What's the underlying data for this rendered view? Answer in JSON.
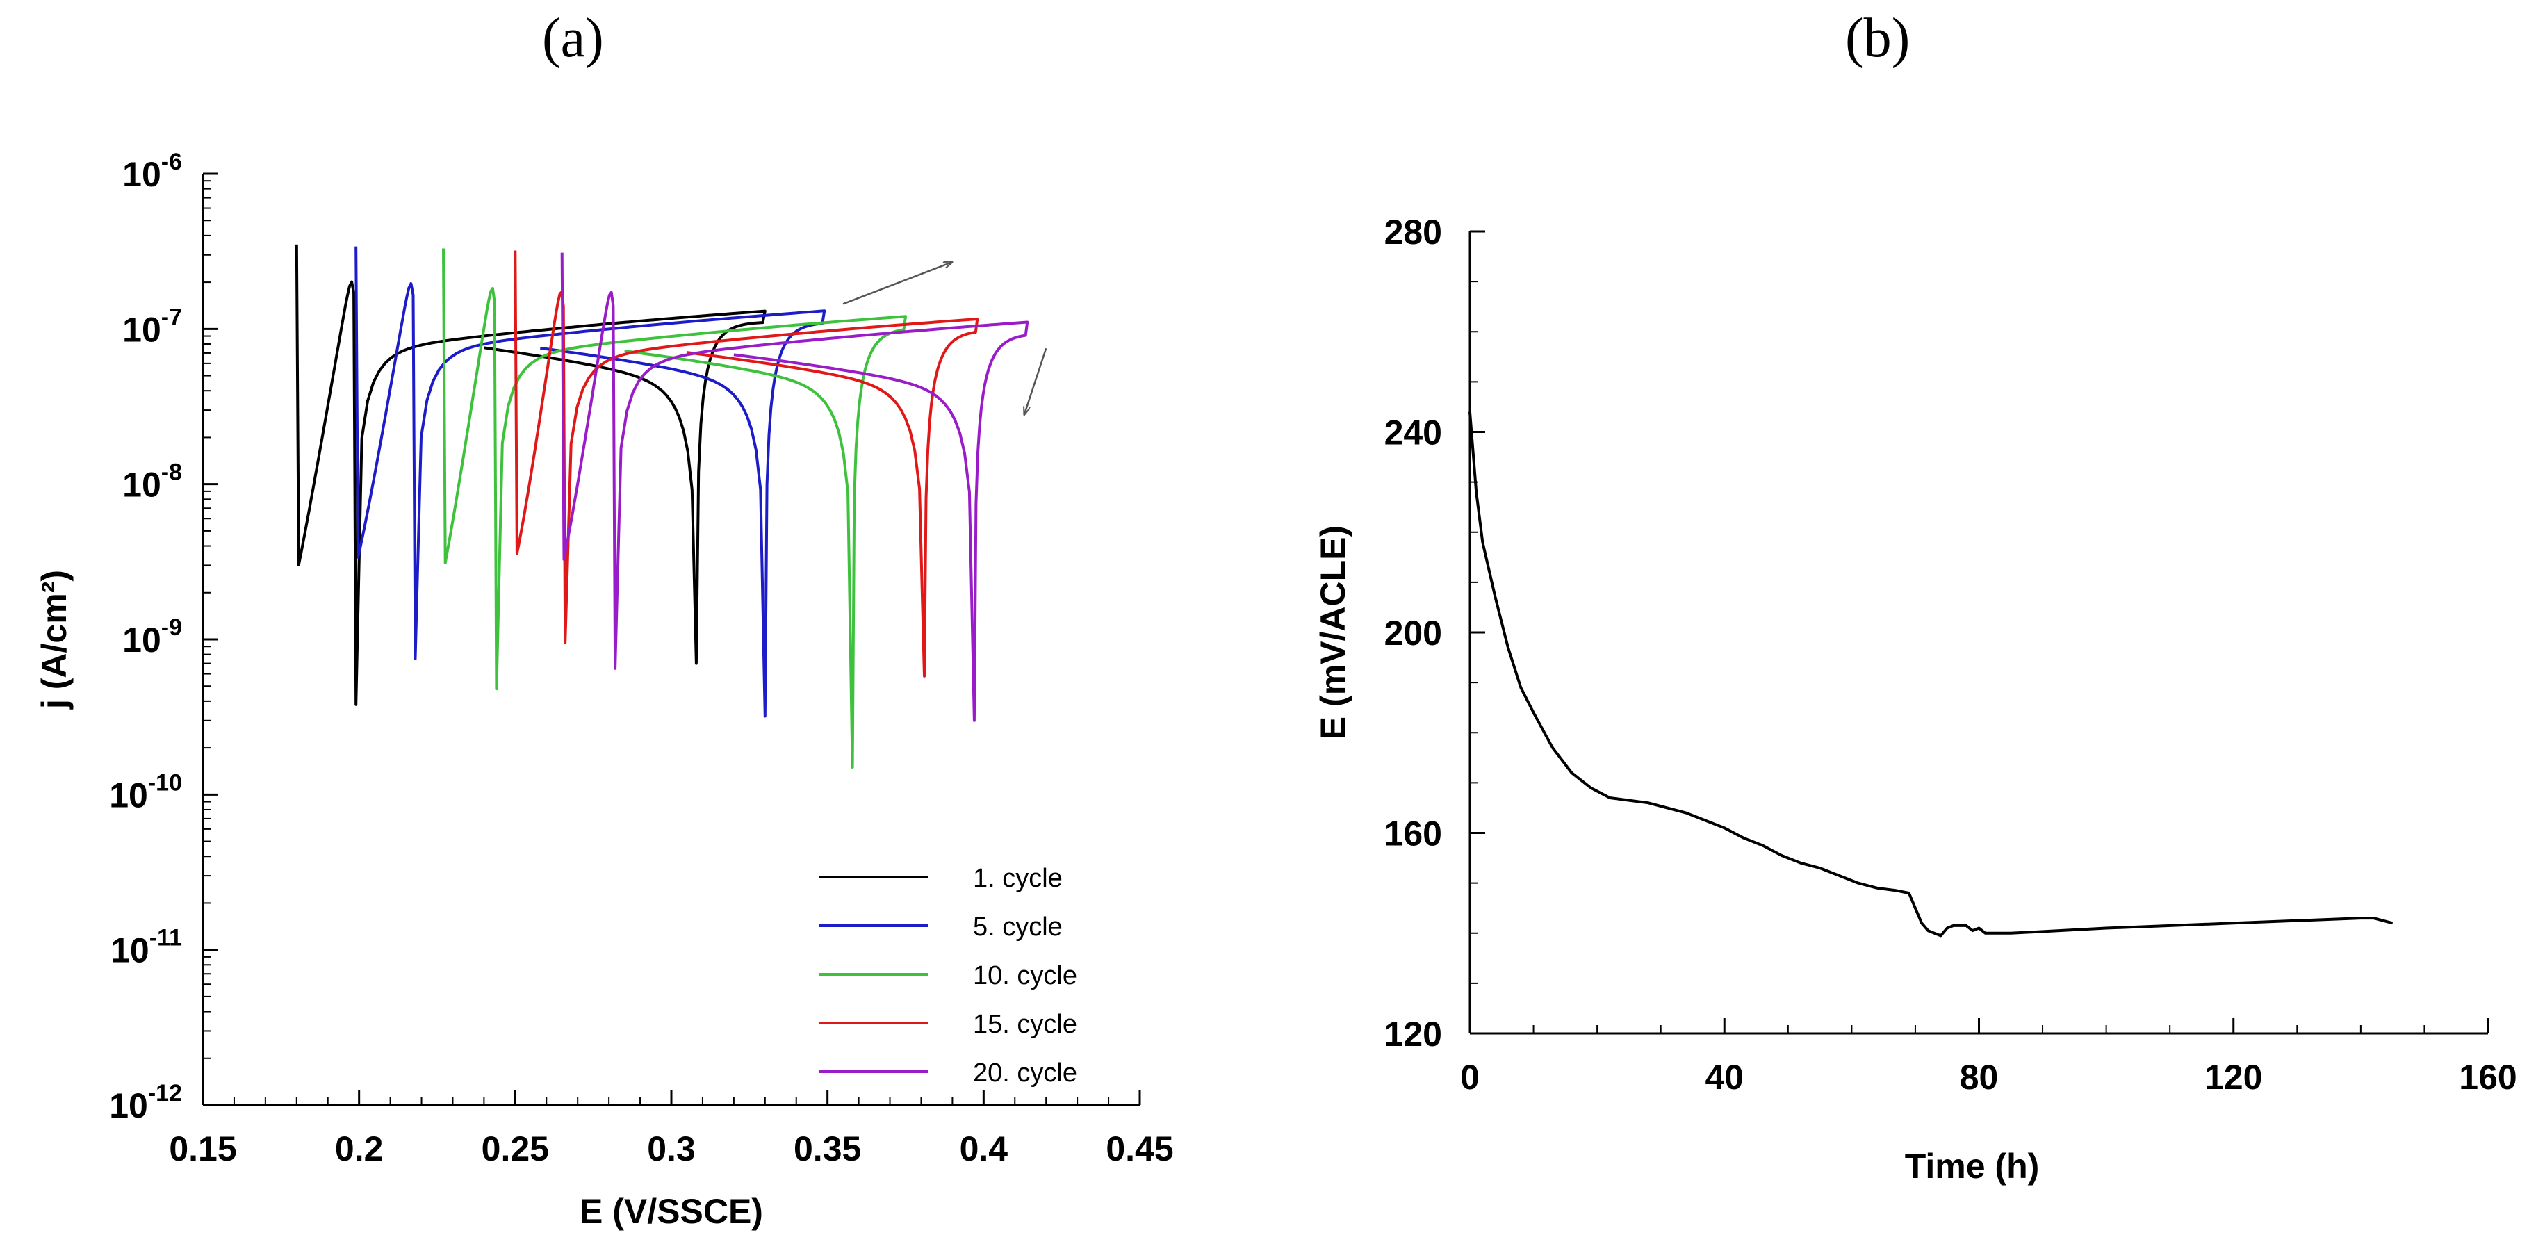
{
  "panels": {
    "a": "(a)",
    "b": "(b)"
  },
  "chart_data": [
    {
      "type": "line",
      "panel": "(a)",
      "xlabel": "E (V/SSCE)",
      "ylabel": "j (A/cm²)",
      "yscale": "log",
      "xlim": [
        0.15,
        0.45
      ],
      "ylim_exp": [
        -12,
        -6
      ],
      "xticks": [
        "0.15",
        "0.2",
        "0.25",
        "0.3",
        "0.35",
        "0.4",
        "0.45"
      ],
      "yticks_exp": [
        -12,
        -11,
        -10,
        -9,
        -8,
        -7,
        -6
      ],
      "legend_position": "bottom-right",
      "series": [
        {
          "name": "1. cycle",
          "color": "#000000",
          "e_start": 0.18,
          "j_start": 3.5e-07,
          "e_corr_fwd": 0.199,
          "j_min_fwd": 3.8e-10,
          "e_max": 0.33,
          "j_at_max": 1.3e-07,
          "e_corr_rev": 0.308,
          "j_min_rev": 7e-10,
          "e_end": 0.24,
          "j_end": 7.5e-08
        },
        {
          "name": "5. cycle",
          "color": "#1c1cc8",
          "e_start": 0.199,
          "j_start": 3.4e-07,
          "e_corr_fwd": 0.218,
          "j_min_fwd": 7.5e-10,
          "e_max": 0.349,
          "j_at_max": 1.3e-07,
          "e_corr_rev": 0.33,
          "j_min_rev": 3.2e-10,
          "e_end": 0.258,
          "j_end": 7.5e-08
        },
        {
          "name": "10. cycle",
          "color": "#3ec23e",
          "e_start": 0.227,
          "j_start": 3.3e-07,
          "e_corr_fwd": 0.244,
          "j_min_fwd": 4.8e-10,
          "e_max": 0.375,
          "j_at_max": 1.2e-07,
          "e_corr_rev": 0.358,
          "j_min_rev": 1.5e-10,
          "e_end": 0.285,
          "j_end": 7.2e-08
        },
        {
          "name": "15. cycle",
          "color": "#e01818",
          "e_start": 0.25,
          "j_start": 3.2e-07,
          "e_corr_fwd": 0.266,
          "j_min_fwd": 9.5e-10,
          "e_max": 0.398,
          "j_at_max": 1.15e-07,
          "e_corr_rev": 0.381,
          "j_min_rev": 5.8e-10,
          "e_end": 0.305,
          "j_end": 7e-08
        },
        {
          "name": "20. cycle",
          "color": "#9a1cc8",
          "e_start": 0.265,
          "j_start": 3.1e-07,
          "e_corr_fwd": 0.282,
          "j_min_fwd": 6.5e-10,
          "e_max": 0.414,
          "j_at_max": 1.1e-07,
          "e_corr_rev": 0.397,
          "j_min_rev": 3e-10,
          "e_end": 0.32,
          "j_end": 6.8e-08
        }
      ],
      "annotations": [
        {
          "type": "arrow",
          "from": [
            0.355,
            1.45e-07
          ],
          "to": [
            0.39,
            2.7e-07
          ]
        },
        {
          "type": "arrow",
          "from": [
            0.42,
            7.5e-08
          ],
          "to": [
            0.413,
            2.8e-08
          ]
        }
      ]
    },
    {
      "type": "line",
      "panel": "(b)",
      "xlabel": "Time (h)",
      "ylabel": "E (mV/ACLE)",
      "xlim": [
        0,
        160
      ],
      "ylim": [
        120,
        280
      ],
      "xticks": [
        "0",
        "40",
        "80",
        "120",
        "160"
      ],
      "yticks": [
        "120",
        "160",
        "200",
        "240",
        "280"
      ],
      "series": [
        {
          "name": "E",
          "color": "#000000",
          "x": [
            0,
            1,
            2,
            4,
            6,
            8,
            10,
            13,
            16,
            19,
            22,
            25,
            28,
            31,
            34,
            37,
            40,
            43,
            46,
            49,
            52,
            55,
            58,
            61,
            64,
            67,
            69,
            70,
            71,
            72,
            73,
            74,
            75,
            76,
            78,
            79,
            80,
            81,
            85,
            100,
            120,
            140,
            142,
            145
          ],
          "y": [
            244,
            228,
            218,
            207,
            197,
            189,
            184,
            177,
            172,
            169,
            167,
            166.5,
            166,
            165,
            164,
            162.5,
            161,
            159,
            157.5,
            155.5,
            154,
            153,
            151.5,
            150,
            149,
            148.5,
            148,
            145,
            142,
            140.5,
            140,
            139.5,
            141,
            141.5,
            141.5,
            140.5,
            141,
            140,
            140,
            141,
            142,
            143,
            143,
            142
          ]
        }
      ]
    }
  ]
}
